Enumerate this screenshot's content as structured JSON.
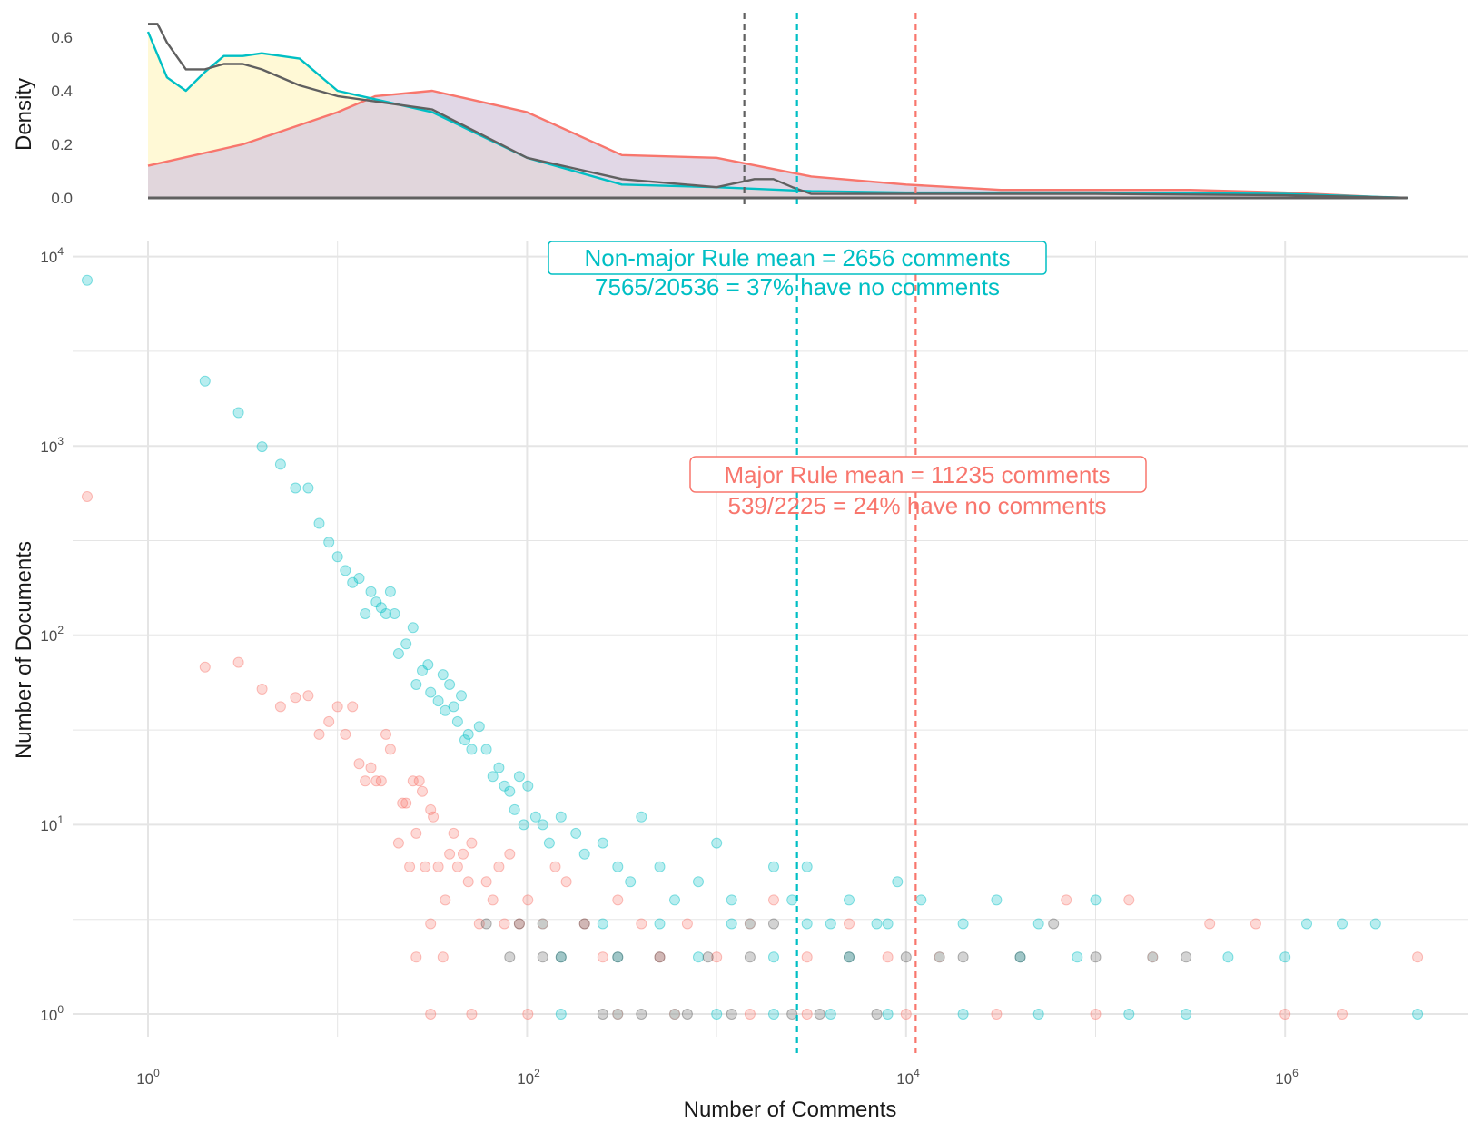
{
  "chart_data": [
    {
      "type": "area",
      "panel": "density",
      "ylabel": "Density",
      "yticks": [
        "0.0",
        "0.2",
        "0.4",
        "0.6"
      ],
      "ylim": [
        0,
        0.65
      ],
      "xlim_log10": [
        0,
        6.65
      ],
      "x_scale": "log10(comments + 1)",
      "series": [
        {
          "group": "major",
          "color": "#F8766D",
          "fill": "#d7cade",
          "x_log10": [
            0,
            0.5,
            1,
            1.2,
            1.5,
            2,
            2.5,
            3,
            3.5,
            4,
            4.5,
            5,
            5.5,
            6,
            6.5,
            6.65
          ],
          "density": [
            0.12,
            0.2,
            0.32,
            0.38,
            0.4,
            0.32,
            0.16,
            0.15,
            0.08,
            0.05,
            0.03,
            0.03,
            0.03,
            0.02,
            0.003,
            0
          ]
        },
        {
          "group": "non-major",
          "color": "#00BFC4",
          "fill": "#fff9d6",
          "x_log10": [
            0,
            0.1,
            0.2,
            0.3,
            0.4,
            0.5,
            0.6,
            0.8,
            1,
            1.5,
            2,
            2.5,
            3,
            3.5,
            4,
            5,
            6,
            6.65
          ],
          "density": [
            0.62,
            0.45,
            0.4,
            0.47,
            0.53,
            0.53,
            0.54,
            0.52,
            0.4,
            0.32,
            0.15,
            0.05,
            0.04,
            0.025,
            0.02,
            0.02,
            0.015,
            0
          ]
        },
        {
          "group": "all",
          "color": "#606060",
          "x_log10": [
            0,
            0.05,
            0.1,
            0.2,
            0.3,
            0.4,
            0.5,
            0.6,
            0.8,
            1,
            1.5,
            2,
            2.5,
            3,
            3.2,
            3.3,
            3.4,
            3.5,
            4,
            5,
            6,
            6.65
          ],
          "density": [
            0.65,
            0.65,
            0.58,
            0.48,
            0.48,
            0.5,
            0.5,
            0.48,
            0.42,
            0.38,
            0.33,
            0.15,
            0.07,
            0.04,
            0.07,
            0.07,
            0.04,
            0.015,
            0.015,
            0.015,
            0.01,
            0
          ]
        }
      ],
      "vlines_comments": [
        {
          "group": "all",
          "x": 1400,
          "color": "#606060"
        },
        {
          "group": "non-major",
          "x": 2656,
          "color": "#00BFC4"
        },
        {
          "group": "major",
          "x": 11235,
          "color": "#F8766D"
        }
      ]
    },
    {
      "type": "scatter",
      "panel": "counts",
      "xlabel": "Number of Comments",
      "ylabel": "Number of Documents",
      "x_scale": "log10",
      "y_scale": "log10",
      "xticks": [
        "10^0",
        "10^2",
        "10^4",
        "10^6"
      ],
      "yticks": [
        "10^0",
        "10^1",
        "10^2",
        "10^3",
        "10^4"
      ],
      "series": [
        {
          "group": "non-major",
          "color": "#00BFC4",
          "points": [
            [
              0,
              7500
            ],
            [
              1,
              2200
            ],
            [
              2,
              1500
            ],
            [
              3,
              990
            ],
            [
              4,
              800
            ],
            [
              5,
              600
            ],
            [
              6,
              600
            ],
            [
              7,
              390
            ],
            [
              8,
              310
            ],
            [
              9,
              260
            ],
            [
              10,
              220
            ],
            [
              11,
              190
            ],
            [
              12,
              200
            ],
            [
              13,
              130
            ],
            [
              14,
              170
            ],
            [
              15,
              150
            ],
            [
              16,
              140
            ],
            [
              17,
              130
            ],
            [
              18,
              170
            ],
            [
              19,
              130
            ],
            [
              20,
              80
            ],
            [
              22,
              90
            ],
            [
              24,
              110
            ],
            [
              25,
              55
            ],
            [
              27,
              65
            ],
            [
              29,
              70
            ],
            [
              30,
              50
            ],
            [
              33,
              45
            ],
            [
              35,
              62
            ],
            [
              36,
              40
            ],
            [
              38,
              55
            ],
            [
              40,
              42
            ],
            [
              42,
              35
            ],
            [
              44,
              48
            ],
            [
              46,
              28
            ],
            [
              48,
              30
            ],
            [
              50,
              25
            ],
            [
              55,
              33
            ],
            [
              60,
              25
            ],
            [
              65,
              18
            ],
            [
              70,
              20
            ],
            [
              75,
              16
            ],
            [
              80,
              15
            ],
            [
              85,
              12
            ],
            [
              90,
              18
            ],
            [
              95,
              10
            ],
            [
              100,
              16
            ],
            [
              110,
              11
            ],
            [
              120,
              10
            ],
            [
              130,
              8
            ],
            [
              150,
              11
            ],
            [
              180,
              9
            ],
            [
              200,
              7
            ],
            [
              250,
              8
            ],
            [
              300,
              6
            ],
            [
              350,
              5
            ],
            [
              400,
              11
            ],
            [
              500,
              6
            ],
            [
              600,
              4
            ],
            [
              800,
              5
            ],
            [
              1000,
              8
            ],
            [
              1200,
              4
            ],
            [
              1500,
              3
            ],
            [
              2000,
              6
            ],
            [
              2500,
              4
            ],
            [
              3000,
              6
            ],
            [
              4000,
              3
            ],
            [
              5000,
              4
            ],
            [
              7000,
              3
            ],
            [
              9000,
              5
            ],
            [
              12000,
              4
            ],
            [
              20000,
              3
            ],
            [
              30000,
              4
            ],
            [
              50000,
              3
            ],
            [
              80000,
              2
            ],
            [
              100000,
              4
            ],
            [
              200000,
              2
            ],
            [
              500000,
              2
            ],
            [
              1000000,
              2
            ],
            [
              1300000,
              3
            ],
            [
              2000000,
              3
            ],
            [
              3000000,
              3
            ],
            [
              150,
              1
            ],
            [
              300,
              1
            ],
            [
              600,
              1
            ],
            [
              1000,
              1
            ],
            [
              2000,
              1
            ],
            [
              4000,
              1
            ],
            [
              8000,
              1
            ],
            [
              20000,
              1
            ],
            [
              50000,
              1
            ],
            [
              150000,
              1
            ],
            [
              300000,
              1
            ],
            [
              5000000,
              1
            ],
            [
              150,
              2
            ],
            [
              300,
              2
            ],
            [
              800,
              2
            ],
            [
              2000,
              2
            ],
            [
              5000,
              2
            ],
            [
              15000,
              2
            ],
            [
              40000,
              2
            ],
            [
              120,
              3
            ],
            [
              250,
              3
            ],
            [
              500,
              3
            ],
            [
              1200,
              3
            ],
            [
              3000,
              3
            ],
            [
              8000,
              3
            ]
          ]
        },
        {
          "group": "major",
          "color": "#F8766D",
          "points": [
            [
              0,
              540
            ],
            [
              1,
              68
            ],
            [
              2,
              72
            ],
            [
              3,
              52
            ],
            [
              4,
              42
            ],
            [
              5,
              47
            ],
            [
              6,
              48
            ],
            [
              7,
              30
            ],
            [
              8,
              35
            ],
            [
              9,
              42
            ],
            [
              10,
              30
            ],
            [
              11,
              42
            ],
            [
              12,
              21
            ],
            [
              13,
              17
            ],
            [
              14,
              20
            ],
            [
              15,
              17
            ],
            [
              16,
              17
            ],
            [
              17,
              30
            ],
            [
              18,
              25
            ],
            [
              20,
              8
            ],
            [
              21,
              13
            ],
            [
              22,
              13
            ],
            [
              23,
              6
            ],
            [
              24,
              17
            ],
            [
              25,
              9
            ],
            [
              26,
              17
            ],
            [
              27,
              15
            ],
            [
              28,
              6
            ],
            [
              30,
              12
            ],
            [
              31,
              11
            ],
            [
              33,
              6
            ],
            [
              36,
              4
            ],
            [
              38,
              7
            ],
            [
              40,
              9
            ],
            [
              42,
              6
            ],
            [
              45,
              7
            ],
            [
              48,
              5
            ],
            [
              50,
              8
            ],
            [
              55,
              3
            ],
            [
              60,
              5
            ],
            [
              65,
              4
            ],
            [
              70,
              6
            ],
            [
              75,
              3
            ],
            [
              80,
              7
            ],
            [
              90,
              3
            ],
            [
              100,
              4
            ],
            [
              120,
              3
            ],
            [
              140,
              6
            ],
            [
              160,
              5
            ],
            [
              200,
              3
            ],
            [
              250,
              2
            ],
            [
              300,
              4
            ],
            [
              400,
              3
            ],
            [
              500,
              2
            ],
            [
              700,
              3
            ],
            [
              1000,
              2
            ],
            [
              1500,
              3
            ],
            [
              2000,
              4
            ],
            [
              3000,
              2
            ],
            [
              5000,
              3
            ],
            [
              8000,
              2
            ],
            [
              15000,
              2
            ],
            [
              30000,
              1
            ],
            [
              70000,
              4
            ],
            [
              150000,
              4
            ],
            [
              200000,
              2
            ],
            [
              400000,
              3
            ],
            [
              700000,
              3
            ],
            [
              2000000,
              1
            ],
            [
              5000000,
              2
            ],
            [
              30,
              1
            ],
            [
              50,
              1
            ],
            [
              100,
              1
            ],
            [
              300,
              1
            ],
            [
              600,
              1
            ],
            [
              1500,
              1
            ],
            [
              3000,
              1
            ],
            [
              10000,
              1
            ],
            [
              100000,
              1
            ],
            [
              1000000,
              1
            ],
            [
              25,
              2
            ],
            [
              30,
              3
            ],
            [
              35,
              2
            ]
          ]
        },
        {
          "group": "all",
          "color": "#606060",
          "points": [
            [
              60,
              3
            ],
            [
              80,
              2
            ],
            [
              90,
              3
            ],
            [
              120,
              2
            ],
            [
              150,
              2
            ],
            [
              200,
              3
            ],
            [
              250,
              1
            ],
            [
              300,
              2
            ],
            [
              400,
              1
            ],
            [
              500,
              2
            ],
            [
              700,
              1
            ],
            [
              900,
              2
            ],
            [
              1200,
              1
            ],
            [
              1500,
              2
            ],
            [
              2000,
              3
            ],
            [
              2500,
              1
            ],
            [
              3500,
              1
            ],
            [
              5000,
              2
            ],
            [
              7000,
              1
            ],
            [
              10000,
              2
            ],
            [
              20000,
              2
            ],
            [
              40000,
              2
            ],
            [
              60000,
              3
            ],
            [
              100000,
              2
            ],
            [
              300000,
              2
            ]
          ]
        }
      ]
    }
  ],
  "annotations": {
    "nonmajor_line1": "Non-major Rule mean = 2656 comments",
    "nonmajor_line2": "7565/20536 = 37% have no comments",
    "major_line1": "Major Rule mean = 11235 comments",
    "major_line2": "539/2225 = 24% have no comments"
  },
  "axes": {
    "density_ylabel": "Density",
    "scatter_ylabel": "Number of Documents",
    "scatter_xlabel": "Number of Comments",
    "density_yticks": [
      "0.0",
      "0.2",
      "0.4",
      "0.6"
    ],
    "x_tick_base": [
      "10",
      "10",
      "10",
      "10"
    ],
    "x_tick_exp": [
      "0",
      "2",
      "4",
      "6"
    ],
    "y_tick_base": [
      "10",
      "10",
      "10",
      "10",
      "10"
    ],
    "y_tick_exp": [
      "0",
      "1",
      "2",
      "3",
      "4"
    ]
  },
  "colors": {
    "major": "#F8766D",
    "nonmajor": "#00BFC4",
    "all": "#606060",
    "grid": "#e5e5e5"
  }
}
